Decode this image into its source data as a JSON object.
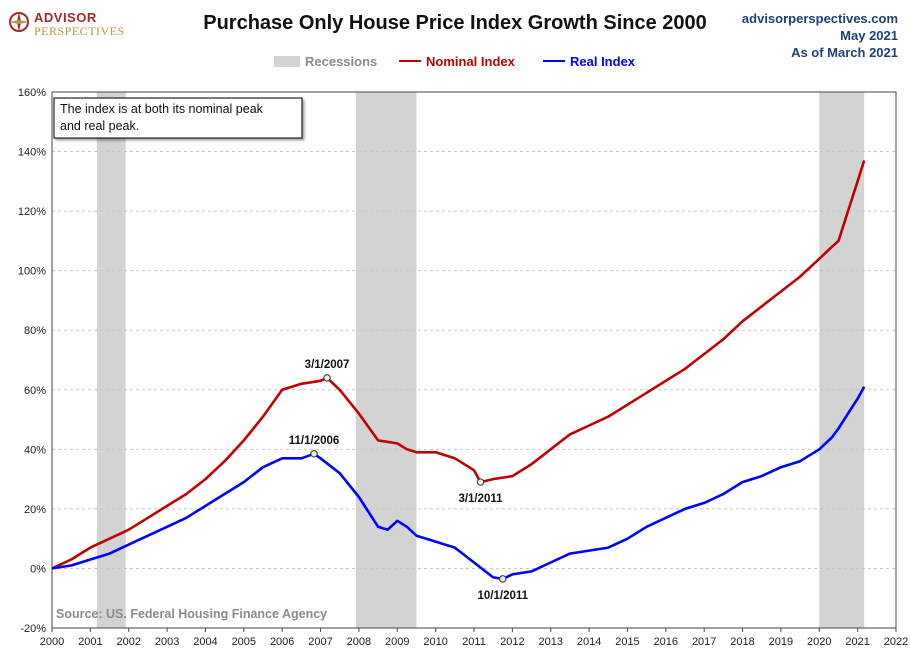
{
  "header": {
    "logo_line1": "ADVISOR",
    "logo_line2": "PERSPECTIVES",
    "title": "Purchase Only House Price Index Growth Since 2000",
    "site": "advisorperspectives.com",
    "date": "May 2021",
    "as_of": "As of March 2021"
  },
  "legend": {
    "recessions": "Recessions",
    "nominal": "Nominal Index",
    "real": "Real Index"
  },
  "annotation": {
    "box_line1": "The index is at both its nominal peak",
    "box_line2": "and real peak."
  },
  "source": "Source: US. Federal Housing Finance Agency",
  "colors": {
    "nominal": "#c00000",
    "real": "#0000ff",
    "recession": "#d3d3d3",
    "title": "#111111",
    "site": "#1f3f7a"
  },
  "chart_data": {
    "type": "line",
    "title": "Purchase Only House Price Index Growth Since 2000",
    "xlabel": "",
    "ylabel": "",
    "xlim": [
      2000,
      2022
    ],
    "ylim": [
      -20,
      160
    ],
    "x_ticks": [
      "2000",
      "2001",
      "2002",
      "2003",
      "2004",
      "2005",
      "2006",
      "2007",
      "2008",
      "2009",
      "2010",
      "2011",
      "2012",
      "2013",
      "2014",
      "2015",
      "2016",
      "2017",
      "2018",
      "2019",
      "2020",
      "2021",
      "2022"
    ],
    "y_ticks": [
      "-20%",
      "0%",
      "20%",
      "40%",
      "60%",
      "80%",
      "100%",
      "120%",
      "140%",
      "160%"
    ],
    "y_tick_values": [
      -20,
      0,
      20,
      40,
      60,
      80,
      100,
      120,
      140,
      160
    ],
    "grid": true,
    "legend_position": "top",
    "recessions": [
      [
        2001.17,
        2001.92
      ],
      [
        2007.92,
        2009.5
      ],
      [
        2020.0,
        2021.17
      ]
    ],
    "series": [
      {
        "name": "Nominal Index",
        "x": [
          2000.0,
          2000.5,
          2001.0,
          2001.5,
          2002.0,
          2002.5,
          2003.0,
          2003.5,
          2004.0,
          2004.5,
          2005.0,
          2005.5,
          2006.0,
          2006.5,
          2007.0,
          2007.17,
          2007.5,
          2008.0,
          2008.5,
          2009.0,
          2009.25,
          2009.5,
          2010.0,
          2010.5,
          2011.0,
          2011.17,
          2011.5,
          2012.0,
          2012.5,
          2013.0,
          2013.5,
          2014.0,
          2014.5,
          2015.0,
          2015.5,
          2016.0,
          2016.5,
          2017.0,
          2017.5,
          2018.0,
          2018.5,
          2019.0,
          2019.5,
          2020.0,
          2020.33,
          2020.5,
          2020.75,
          2021.0,
          2021.17
        ],
        "values": [
          0,
          3,
          7,
          10,
          13,
          17,
          21,
          25,
          30,
          36,
          43,
          51,
          60,
          62,
          63,
          64,
          60,
          52,
          43,
          42,
          40,
          39,
          39,
          37,
          33,
          29,
          30,
          31,
          35,
          40,
          45,
          48,
          51,
          55,
          59,
          63,
          67,
          72,
          77,
          83,
          88,
          93,
          98,
          104,
          108,
          110,
          120,
          130,
          137
        ]
      },
      {
        "name": "Real Index",
        "x": [
          2000.0,
          2000.5,
          2001.0,
          2001.5,
          2002.0,
          2002.5,
          2003.0,
          2003.5,
          2004.0,
          2004.5,
          2005.0,
          2005.5,
          2006.0,
          2006.5,
          2006.83,
          2007.0,
          2007.5,
          2008.0,
          2008.5,
          2008.75,
          2009.0,
          2009.25,
          2009.5,
          2010.0,
          2010.5,
          2011.0,
          2011.5,
          2011.75,
          2012.0,
          2012.5,
          2013.0,
          2013.5,
          2014.0,
          2014.5,
          2015.0,
          2015.5,
          2016.0,
          2016.5,
          2017.0,
          2017.5,
          2018.0,
          2018.5,
          2019.0,
          2019.5,
          2020.0,
          2020.33,
          2020.5,
          2020.75,
          2021.0,
          2021.17
        ],
        "values": [
          0,
          1,
          3,
          5,
          8,
          11,
          14,
          17,
          21,
          25,
          29,
          34,
          37,
          37,
          38.5,
          37,
          32,
          24,
          14,
          13,
          16,
          14,
          11,
          9,
          7,
          2,
          -3,
          -3.5,
          -2,
          -1,
          2,
          5,
          6,
          7,
          10,
          14,
          17,
          20,
          22,
          25,
          29,
          31,
          34,
          36,
          40,
          44,
          47,
          52,
          57,
          61
        ]
      }
    ],
    "annotations": [
      {
        "label": "3/1/2007",
        "x": 2007.17,
        "y": 64,
        "series": "Nominal Index",
        "position": "above"
      },
      {
        "label": "11/1/2006",
        "x": 2006.83,
        "y": 38.5,
        "series": "Real Index",
        "position": "above"
      },
      {
        "label": "3/1/2011",
        "x": 2011.17,
        "y": 29,
        "series": "Nominal Index",
        "position": "below"
      },
      {
        "label": "10/1/2011",
        "x": 2011.75,
        "y": -3.5,
        "series": "Real Index",
        "position": "below"
      }
    ]
  }
}
